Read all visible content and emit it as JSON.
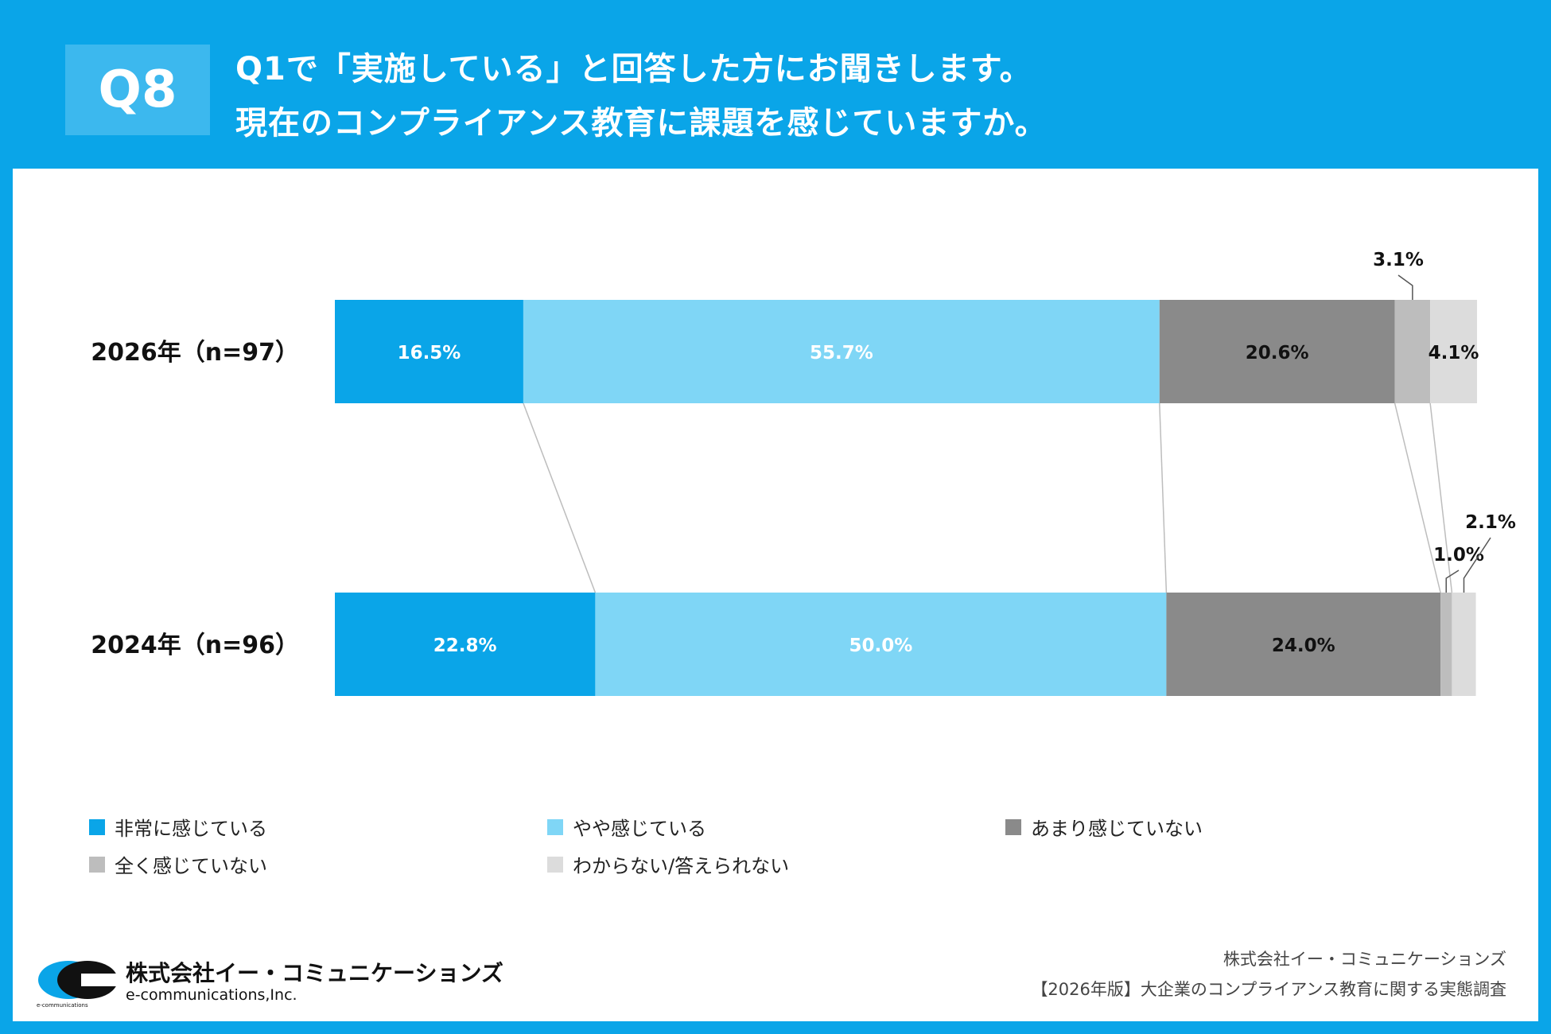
{
  "header": {
    "badge": "Q8",
    "line1": "Q1で「実施している」と回答した方にお聞きします。",
    "line2": "現在のコンプライアンス教育に課題を感じていますか。"
  },
  "chart_data": {
    "type": "bar",
    "orientation": "horizontal",
    "stacked": true,
    "percent": true,
    "categories": [
      "2026年（n=97）",
      "2024年（n=96）"
    ],
    "series": [
      {
        "name": "非常に感じている",
        "values": [
          16.5,
          22.8
        ],
        "color": "#0aa5e8",
        "labels": [
          "16.5%",
          "22.8%"
        ]
      },
      {
        "name": "やや感じている",
        "values": [
          55.7,
          50.0
        ],
        "color": "#7fd6f6",
        "labels": [
          "55.7%",
          "50.0%"
        ]
      },
      {
        "name": "あまり感じていない",
        "values": [
          20.6,
          24.0
        ],
        "color": "#8a8a8a",
        "labels": [
          "20.6%",
          "24.0%"
        ]
      },
      {
        "name": "全く感じていない",
        "values": [
          3.1,
          1.0
        ],
        "color": "#bdbdbd",
        "labels": [
          "3.1%",
          "1.0%"
        ]
      },
      {
        "name": "わからない/答えられない",
        "values": [
          4.1,
          2.1
        ],
        "color": "#dcdcdc",
        "labels": [
          "4.1%",
          "2.1%"
        ]
      }
    ],
    "xlim": [
      0,
      100
    ],
    "legend_position": "bottom",
    "connector_lines": true
  },
  "footer": {
    "logo_jp": "株式会社イー・コミュニケーションズ",
    "logo_en": "e-communications,Inc.",
    "logo_small": "e-communications",
    "credit_company": "株式会社イー・コミュニケーションズ",
    "credit_survey": "【2026年版】大企業のコンプライアンス教育に関する実態調査"
  }
}
